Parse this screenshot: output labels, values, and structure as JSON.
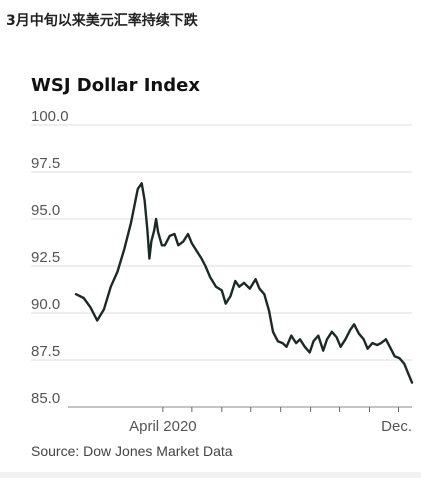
{
  "headline": "3月中旬以来美元汇率持续下跌",
  "chart_data": {
    "type": "line",
    "title": "WSJ Dollar Index",
    "source": "Source: Dow Jones Market Data",
    "xlabel": "",
    "ylabel": "",
    "ylim": [
      85,
      100
    ],
    "xlim": [
      "2020-01-02",
      "2020-12-15"
    ],
    "grid": true,
    "y_ticks": [
      {
        "value": 100,
        "label": "100.0"
      },
      {
        "value": 97.5,
        "label": "97.5"
      },
      {
        "value": 95,
        "label": "95.0"
      },
      {
        "value": 92.5,
        "label": "92.5"
      },
      {
        "value": 90,
        "label": "90.0"
      },
      {
        "value": 87.5,
        "label": "87.5"
      },
      {
        "value": 85,
        "label": "85.0"
      }
    ],
    "x_ticks": [
      {
        "date": "2020-04-01",
        "label": "April 2020"
      },
      {
        "date": "2020-05-01",
        "label": ""
      },
      {
        "date": "2020-06-01",
        "label": ""
      },
      {
        "date": "2020-07-01",
        "label": ""
      },
      {
        "date": "2020-08-01",
        "label": ""
      },
      {
        "date": "2020-09-01",
        "label": ""
      },
      {
        "date": "2020-10-01",
        "label": ""
      },
      {
        "date": "2020-11-01",
        "label": ""
      },
      {
        "date": "2020-12-01",
        "label": "Dec."
      }
    ],
    "series": [
      {
        "color": "#1b2a24",
        "x": [
          "2020-01-02",
          "2020-01-10",
          "2020-01-17",
          "2020-01-24",
          "2020-01-31",
          "2020-02-07",
          "2020-02-14",
          "2020-02-21",
          "2020-02-28",
          "2020-03-06",
          "2020-03-10",
          "2020-03-13",
          "2020-03-16",
          "2020-03-18",
          "2020-03-20",
          "2020-03-23",
          "2020-03-25",
          "2020-03-27",
          "2020-03-31",
          "2020-04-03",
          "2020-04-08",
          "2020-04-13",
          "2020-04-17",
          "2020-04-22",
          "2020-04-27",
          "2020-05-01",
          "2020-05-06",
          "2020-05-11",
          "2020-05-15",
          "2020-05-20",
          "2020-05-26",
          "2020-06-01",
          "2020-06-05",
          "2020-06-10",
          "2020-06-15",
          "2020-06-19",
          "2020-06-24",
          "2020-06-30",
          "2020-07-06",
          "2020-07-10",
          "2020-07-15",
          "2020-07-20",
          "2020-07-24",
          "2020-07-29",
          "2020-08-03",
          "2020-08-07",
          "2020-08-12",
          "2020-08-17",
          "2020-08-21",
          "2020-08-26",
          "2020-08-31",
          "2020-09-04",
          "2020-09-09",
          "2020-09-14",
          "2020-09-18",
          "2020-09-23",
          "2020-09-28",
          "2020-10-02",
          "2020-10-07",
          "2020-10-12",
          "2020-10-16",
          "2020-10-21",
          "2020-10-26",
          "2020-10-30",
          "2020-11-04",
          "2020-11-09",
          "2020-11-13",
          "2020-11-18",
          "2020-11-23",
          "2020-11-27",
          "2020-12-02",
          "2020-12-07",
          "2020-12-11",
          "2020-12-15"
        ],
        "y": [
          91.0,
          90.8,
          90.3,
          89.6,
          90.2,
          91.4,
          92.2,
          93.4,
          94.8,
          96.6,
          96.9,
          96.0,
          94.4,
          92.9,
          93.8,
          94.4,
          95.0,
          94.3,
          93.6,
          93.6,
          94.1,
          94.2,
          93.6,
          93.8,
          94.2,
          93.7,
          93.3,
          92.9,
          92.5,
          91.9,
          91.4,
          91.2,
          90.5,
          90.9,
          91.7,
          91.4,
          91.6,
          91.3,
          91.8,
          91.3,
          91.0,
          90.1,
          89.0,
          88.5,
          88.4,
          88.2,
          88.8,
          88.4,
          88.6,
          88.2,
          87.9,
          88.5,
          88.8,
          88.0,
          88.6,
          89.0,
          88.7,
          88.2,
          88.6,
          89.1,
          89.4,
          88.9,
          88.6,
          88.1,
          88.4,
          88.3,
          88.4,
          88.6,
          88.1,
          87.7,
          87.6,
          87.3,
          86.8,
          86.3
        ]
      }
    ]
  }
}
